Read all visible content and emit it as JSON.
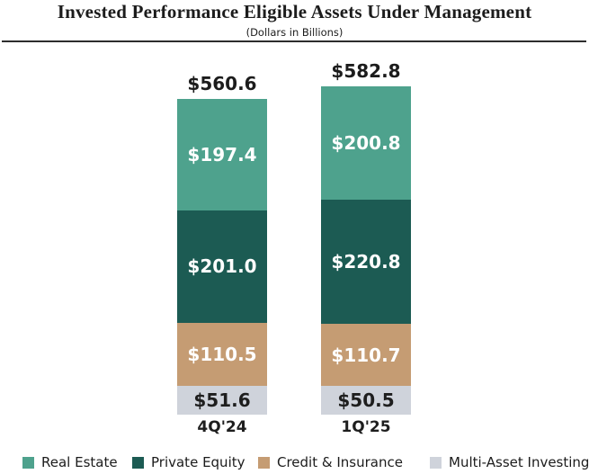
{
  "title": "Invested Performance Eligible Assets Under Management",
  "subtitle": "(Dollars in Billions)",
  "chart_data": {
    "type": "bar",
    "subtype": "stacked-vertical",
    "title": "Invested Performance Eligible Assets Under Management",
    "unit_note": "(Dollars in Billions)",
    "categories": [
      "4Q'24",
      "1Q'25"
    ],
    "totals": [
      560.6,
      582.8
    ],
    "totals_display": [
      "$560.6",
      "$582.8"
    ],
    "series": [
      {
        "name": "Real Estate",
        "color": "#4ea28d",
        "label_color": "#ffffff",
        "values": [
          197.4,
          200.8
        ],
        "labels": [
          "$197.4",
          "$200.8"
        ]
      },
      {
        "name": "Private Equity",
        "color": "#1c5b53",
        "label_color": "#ffffff",
        "values": [
          201.0,
          220.8
        ],
        "labels": [
          "$201.0",
          "$220.8"
        ]
      },
      {
        "name": "Credit & Insurance",
        "color": "#c59c73",
        "label_color": "#ffffff",
        "values": [
          110.5,
          110.7
        ],
        "labels": [
          "$110.5",
          "$110.7"
        ]
      },
      {
        "name": "Multi-Asset Investing",
        "color": "#cfd3db",
        "label_color": "#1e1e1e",
        "values": [
          51.6,
          50.5
        ],
        "labels": [
          "$51.6",
          "$50.5"
        ]
      }
    ],
    "stack_order": "top-to-bottom",
    "legend_position": "bottom",
    "grid": false,
    "axis_lines": false
  }
}
